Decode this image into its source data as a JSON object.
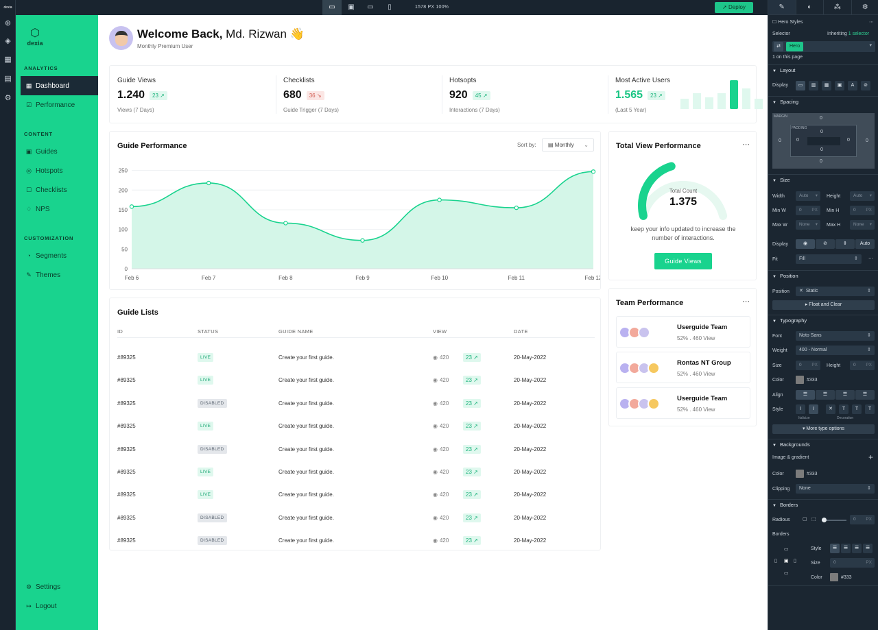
{
  "topbar": {
    "zoom": "1578 PX  100%",
    "deploy_label": "Deploy",
    "app_label": "dexia"
  },
  "sidebar": {
    "brand": "dexia",
    "sections": [
      {
        "title": "ANALYTICS",
        "items": [
          {
            "label": "Dashboard",
            "icon": "grid-icon",
            "active": true
          },
          {
            "label": "Performance",
            "icon": "chart-icon"
          }
        ]
      },
      {
        "title": "CONTENT",
        "items": [
          {
            "label": "Guides",
            "icon": "book-icon"
          },
          {
            "label": "Hotspots",
            "icon": "target-icon"
          },
          {
            "label": "Checklists",
            "icon": "checklist-icon"
          },
          {
            "label": "NPS",
            "icon": "thumbs-icon"
          }
        ]
      },
      {
        "title": "CUSTOMIZATION",
        "items": [
          {
            "label": "Segments",
            "icon": "pie-icon"
          },
          {
            "label": "Themes",
            "icon": "brush-icon"
          }
        ]
      }
    ],
    "bottom": [
      {
        "label": "Settings",
        "icon": "gear-icon"
      },
      {
        "label": "Logout",
        "icon": "logout-icon"
      }
    ]
  },
  "header": {
    "welcome": "Welcome Back,",
    "name": "Md. Rizwan",
    "emoji": "👋",
    "subtitle": "Monthly Premium User"
  },
  "stats": [
    {
      "label": "Guide Views",
      "value": "1.240",
      "badge": "23 ↗",
      "trend": "up",
      "note": "Views (7 Days)"
    },
    {
      "label": "Checklists",
      "value": "680",
      "badge": "36 ↘",
      "trend": "down",
      "note": "Guide Trigger (7 Days)"
    },
    {
      "label": "Hotsopts",
      "value": "920",
      "badge": "45 ↗",
      "trend": "up",
      "note": "Interactions (7 Days)"
    },
    {
      "label": "Most Active Users",
      "value": "1.565",
      "badge": "23 ↗",
      "trend": "up",
      "note": "(Last 5 Year)"
    }
  ],
  "active_users_bars": [
    0.35,
    0.55,
    0.4,
    0.55,
    1.0,
    0.72,
    0.35
  ],
  "guide_performance": {
    "title": "Guide Performance",
    "sort_label": "Sort by:",
    "sort_value": "Monthly"
  },
  "chart_data": {
    "type": "area",
    "categories": [
      "Feb 6",
      "Feb 7",
      "Feb 8",
      "Feb 9",
      "Feb 10",
      "Feb 11",
      "Feb 12"
    ],
    "series": [
      {
        "values": [
          158,
          218,
          116,
          72,
          175,
          155,
          247
        ]
      }
    ],
    "yticks": [
      0,
      50,
      100,
      150,
      200,
      250
    ],
    "ylim": [
      0,
      265
    ],
    "color": "#19d38e",
    "fill": "#d4f6e8",
    "grid": true
  },
  "total_view": {
    "title": "Total View Performance",
    "count_label": "Total Count",
    "count": "1.375",
    "fraction": 0.42,
    "note": "keep your info updated to increase the number of interactions.",
    "button": "Guide Views"
  },
  "guide_list": {
    "title": "Guide Lists",
    "columns": [
      "ID",
      "STATUS",
      "GUIDE NAME",
      "VIEW",
      "DATE"
    ],
    "rows": [
      {
        "id": "#89325",
        "status": "LIVE",
        "name": "Create your first guide.",
        "views": "420",
        "badge": "23 ↗",
        "date": "20-May-2022"
      },
      {
        "id": "#89325",
        "status": "LIVE",
        "name": "Create your first guide.",
        "views": "420",
        "badge": "23 ↗",
        "date": "20-May-2022"
      },
      {
        "id": "#89325",
        "status": "DISABLED",
        "name": "Create your first guide.",
        "views": "420",
        "badge": "23 ↗",
        "date": "20-May-2022"
      },
      {
        "id": "#89325",
        "status": "LIVE",
        "name": "Create your first guide.",
        "views": "420",
        "badge": "23 ↗",
        "date": "20-May-2022"
      },
      {
        "id": "#89325",
        "status": "DISABLED",
        "name": "Create your first guide.",
        "views": "420",
        "badge": "23 ↗",
        "date": "20-May-2022"
      },
      {
        "id": "#89325",
        "status": "LIVE",
        "name": "Create your first guide.",
        "views": "420",
        "badge": "23 ↗",
        "date": "20-May-2022"
      },
      {
        "id": "#89325",
        "status": "LIVE",
        "name": "Create your first guide.",
        "views": "420",
        "badge": "23 ↗",
        "date": "20-May-2022"
      },
      {
        "id": "#89325",
        "status": "DISABLED",
        "name": "Create your first guide.",
        "views": "420",
        "badge": "23 ↗",
        "date": "20-May-2022"
      },
      {
        "id": "#89325",
        "status": "DISABLED",
        "name": "Create your first guide.",
        "views": "420",
        "badge": "23 ↗",
        "date": "20-May-2022"
      }
    ]
  },
  "team_performance": {
    "title": "Team Performance",
    "teams": [
      {
        "name": "Userguide Team",
        "meta": "52%  .  460 View",
        "avatars": [
          "#b9b1f0",
          "#f2a99b",
          "#c9c3ee"
        ]
      },
      {
        "name": "Rontas NT Group",
        "meta": "52%  .  460 View",
        "avatars": [
          "#b9b1f0",
          "#f2a99b",
          "#c9c3ee",
          "#f6c85f"
        ]
      },
      {
        "name": "Userguide Team",
        "meta": "52%  .  460 View",
        "avatars": [
          "#b9b1f0",
          "#f2a99b",
          "#c9c3ee",
          "#f6c85f"
        ]
      }
    ]
  },
  "panel": {
    "hero_styles": "Hero Styles",
    "selector_label": "Selector",
    "inheriting": "Inheriting",
    "selector_link": "1 selector",
    "hero_chip": "Hero",
    "on_page": "1 on this page",
    "layout": "Layout",
    "display": "Display",
    "spacing": "Spacing",
    "margin": "MARGIN",
    "padding": "PADDING",
    "zero": "0",
    "size": "Size",
    "width": "Width",
    "height": "Height",
    "auto": "Auto",
    "minw": "Min W",
    "minh": "Min H",
    "maxw": "Max W",
    "maxh": "Max H",
    "px": "PX",
    "none": "None",
    "display2": "Display",
    "auto_btn": "Auto",
    "fit": "Fit",
    "fill": "Fill",
    "position": "Position",
    "position_label": "Position",
    "static": "Static",
    "float_clear": "Float and Clear",
    "typography": "Typography",
    "font": "Font",
    "font_value": "Noto Sans",
    "weight": "Weight",
    "weight_value": "400 - Normal",
    "size_lbl": "Size",
    "height_lbl": "Height",
    "color": "Color",
    "color_value": "#333",
    "align": "Align",
    "style": "Style",
    "italicize": "Italicize",
    "decoration": "Decoration",
    "more_type": "More type options",
    "backgrounds": "Backgrounds",
    "image_gradient": "Image & gradient",
    "bg_color": "Color",
    "bg_color_value": "#333",
    "clipping": "Clipping",
    "clipping_value": "None",
    "borders": "Borders",
    "radious": "Radious",
    "borders_lbl": "Borders",
    "b_style": "Style",
    "b_size": "Size",
    "b_color": "Color",
    "b_color_value": "#333"
  }
}
